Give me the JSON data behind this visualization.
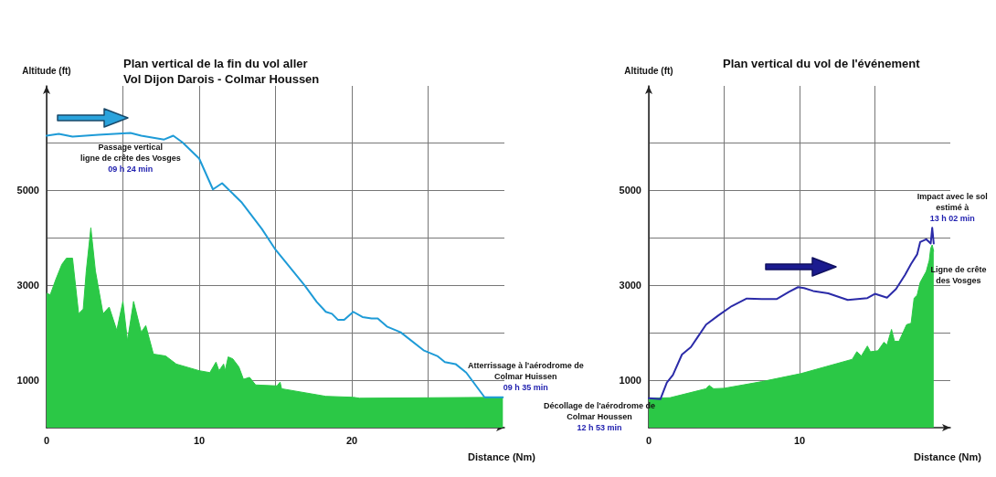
{
  "chart_data": [
    {
      "type": "line",
      "title": "Plan vertical de la fin du vol aller",
      "subtitle": "Vol Dijon Darois - Colmar Houssen",
      "xlabel": "Distance (Nm)",
      "ylabel": "Altitude (ft)",
      "xlim": [
        0,
        30
      ],
      "ylim": [
        0,
        7200
      ],
      "xticks": [
        0,
        {
          "value": 5,
          "label": null
        },
        10,
        {
          "value": 15,
          "label": null
        },
        20,
        {
          "value": 25,
          "label": null
        }
      ],
      "yticks": [
        1000,
        {
          "value": 2000,
          "label": null
        },
        3000,
        {
          "value": 4000,
          "label": null
        },
        5000,
        {
          "value": 6000,
          "label": null
        }
      ],
      "grid": true,
      "marker": "none",
      "series": [
        {
          "type": "area",
          "color": "#2bc846",
          "x": [
            0,
            0.24,
            0.6,
            1.0,
            1.3,
            1.7,
            2.1,
            2.4,
            2.6,
            2.9,
            3.2,
            3.7,
            4.1,
            4.6,
            5.0,
            5.3,
            5.7,
            6.2,
            6.5,
            7.0,
            7.8,
            8.5,
            10,
            10.7,
            11.1,
            11.3,
            11.6,
            11.7,
            11.9,
            12.2,
            12.6,
            12.9,
            13.3,
            13.7,
            15.1,
            15.3,
            15.4,
            18.3,
            20.1,
            20.5,
            29.9
          ],
          "values": [
            2830,
            2800,
            3120,
            3440,
            3570,
            3570,
            2400,
            2500,
            3300,
            4210,
            3300,
            2400,
            2540,
            2050,
            2660,
            1830,
            2660,
            2010,
            2150,
            1550,
            1510,
            1340,
            1200,
            1160,
            1380,
            1200,
            1340,
            1200,
            1490,
            1450,
            1280,
            1020,
            1060,
            900,
            880,
            960,
            820,
            660,
            640,
            620,
            640
          ]
        },
        {
          "type": "line",
          "color": "#1e9bd7",
          "x": [
            0,
            0.8,
            1.7,
            3.4,
            5.5,
            6.2,
            7.7,
            8.3,
            8.9,
            10,
            10.9,
            11.5,
            12.8,
            14.1,
            15,
            16.9,
            17.7,
            18.3,
            18.7,
            19.1,
            19.5,
            20.1,
            20.7,
            21.3,
            21.7,
            22.3,
            23.2,
            24.7,
            25.6,
            26.1,
            26.8,
            27.5,
            28.7,
            29.9
          ],
          "values": [
            6150,
            6190,
            6130,
            6170,
            6210,
            6150,
            6070,
            6150,
            6010,
            5670,
            5020,
            5150,
            4740,
            4190,
            3750,
            3000,
            2650,
            2440,
            2400,
            2270,
            2270,
            2440,
            2330,
            2300,
            2300,
            2130,
            2010,
            1630,
            1510,
            1380,
            1340,
            1160,
            640,
            640
          ]
        }
      ],
      "annotations": [
        {
          "text": "Passage vertical\nligne de crête des Vosges\n09 h 24 min",
          "x": 5.5,
          "y": 6210
        },
        {
          "text": "Atterrissage à l'aérodrome de\nColmar Huissen\n09 h 35 min",
          "x": 29.9,
          "y": 640
        }
      ]
    },
    {
      "type": "line",
      "title": "Plan vertical du vol de l'événement",
      "xlabel": "Distance (Nm)",
      "ylabel": "Altitude (ft)",
      "xlim": [
        0,
        20
      ],
      "ylim": [
        0,
        7200
      ],
      "xticks": [
        0,
        {
          "value": 5,
          "label": null
        },
        10,
        {
          "value": 15,
          "label": null
        }
      ],
      "yticks": [
        1000,
        {
          "value": 2000,
          "label": null
        },
        3000,
        {
          "value": 4000,
          "label": null
        },
        5000,
        {
          "value": 6000,
          "label": null
        }
      ],
      "grid": true,
      "marker": "none",
      "series": [
        {
          "type": "area",
          "color": "#2bc846",
          "x": [
            0,
            1.4,
            3.8,
            4.0,
            4.3,
            5.0,
            7.5,
            10.1,
            13.5,
            13.8,
            14.1,
            14.5,
            14.7,
            15.2,
            15.6,
            15.8,
            16.1,
            16.3,
            16.6,
            17.1,
            17.4,
            17.6,
            17.8,
            18.0,
            18.4,
            18.6,
            18.7,
            18.8,
            18.9
          ],
          "values": [
            620,
            630,
            820,
            890,
            820,
            830,
            970,
            1140,
            1440,
            1600,
            1510,
            1720,
            1600,
            1620,
            1800,
            1740,
            2070,
            1820,
            1820,
            2170,
            2200,
            2730,
            2790,
            3060,
            3290,
            3520,
            3780,
            3850,
            3710
          ]
        },
        {
          "type": "line",
          "color": "#2b2ba8",
          "x": [
            0,
            0.77,
            1.2,
            1.6,
            2.2,
            2.8,
            3.8,
            4.6,
            5.5,
            6.5,
            7.5,
            8.5,
            9.3,
            9.9,
            10.3,
            10.9,
            11.9,
            13.2,
            14.5,
            15.0,
            15.8,
            16.4,
            17.0,
            17.4,
            17.8,
            18.0,
            18.4,
            18.7,
            18.8,
            18.9
          ],
          "values": [
            620,
            600,
            950,
            1110,
            1540,
            1700,
            2170,
            2360,
            2560,
            2720,
            2710,
            2710,
            2860,
            2960,
            2940,
            2880,
            2830,
            2690,
            2730,
            2820,
            2740,
            2920,
            3220,
            3450,
            3650,
            3910,
            3970,
            3880,
            4210,
            3880
          ]
        }
      ],
      "annotations": [
        {
          "text": "Décollage de l'aérodrome de\nColmar Houssen\n12 h 53 min",
          "x": 0,
          "y": 620
        },
        {
          "text": "Impact avec le sol\nestimé à\n13 h 02 min",
          "x": 18.8,
          "y": 4210
        },
        {
          "text": "Ligne de crête\ndes Vosges",
          "x": 18.6,
          "y": 3520
        }
      ]
    }
  ]
}
